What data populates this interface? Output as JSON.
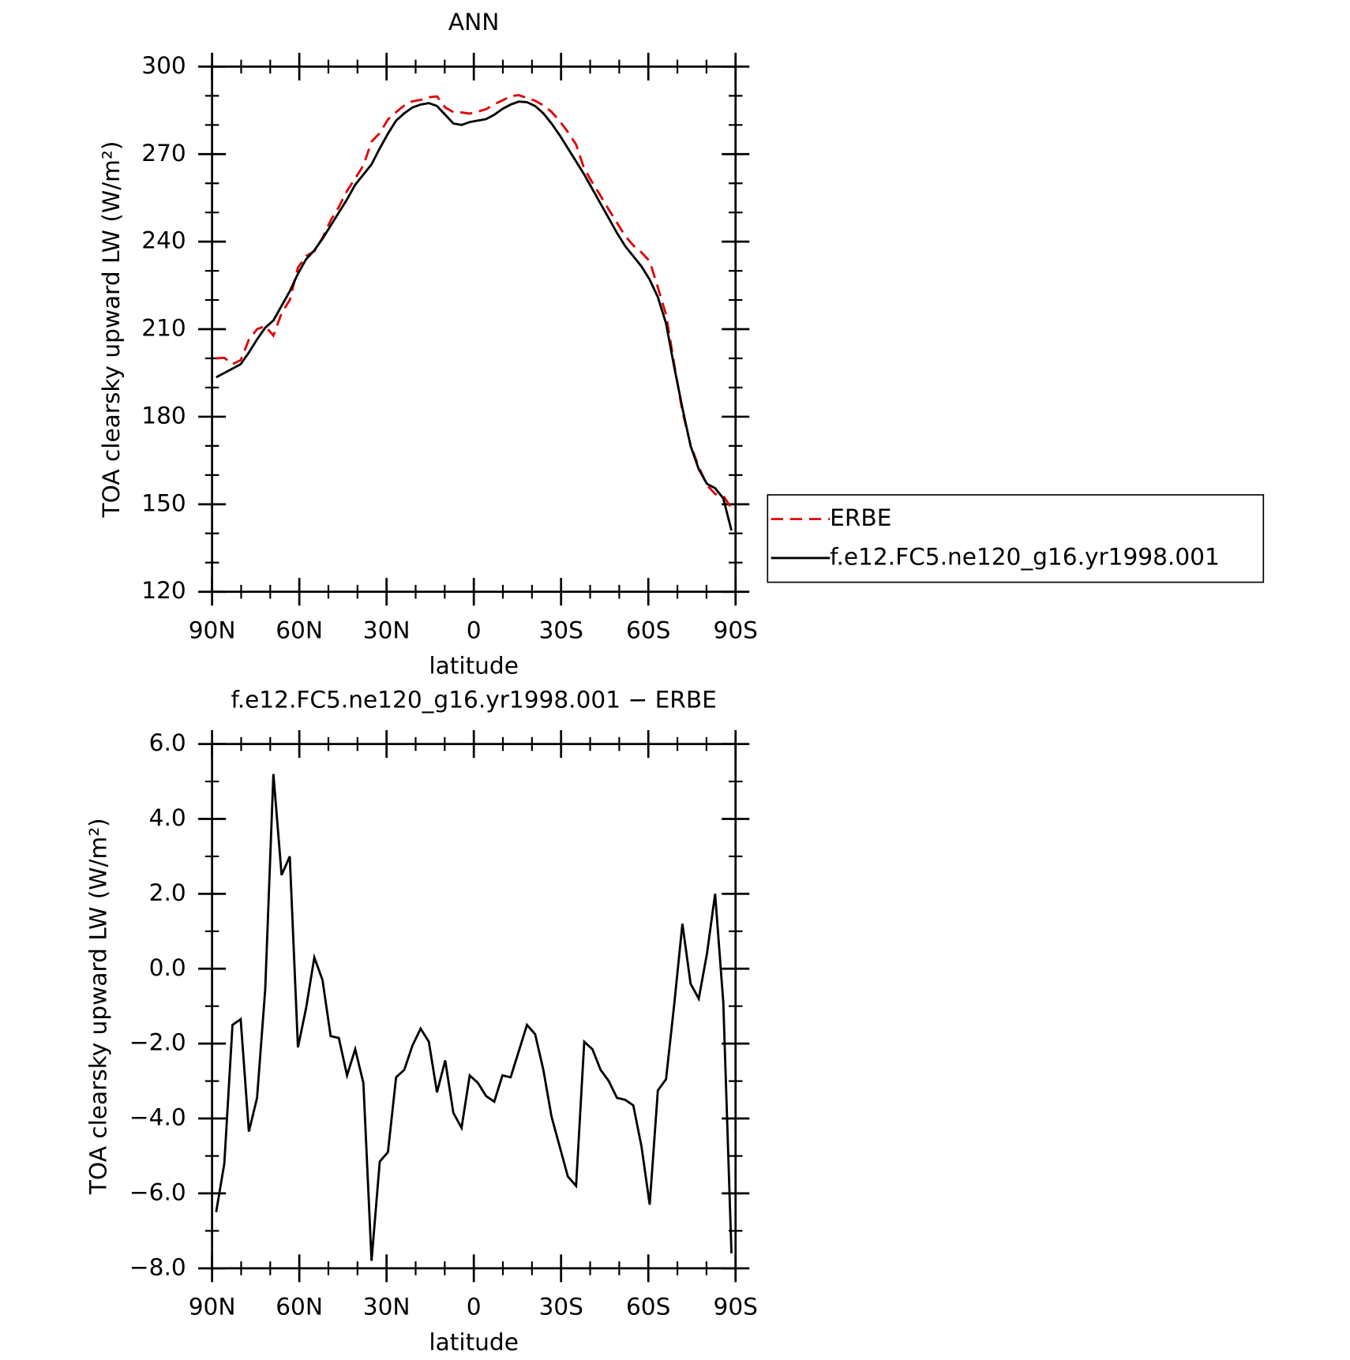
{
  "chart_data": [
    {
      "type": "line",
      "title": "ANN",
      "xlabel": "latitude",
      "ylabel": "TOA clearsky upward LW (W/m²)",
      "x": [
        88.59,
        85.78,
        82.97,
        80.16,
        77.34,
        74.53,
        71.72,
        68.91,
        66.09,
        63.28,
        60.47,
        57.66,
        54.84,
        52.03,
        49.22,
        46.41,
        43.59,
        40.78,
        37.97,
        35.16,
        32.34,
        29.53,
        26.72,
        23.91,
        21.09,
        18.28,
        15.47,
        12.66,
        9.84,
        7.03,
        4.22,
        1.41,
        -1.41,
        -4.22,
        -7.03,
        -9.84,
        -12.66,
        -15.47,
        -18.28,
        -21.09,
        -23.91,
        -26.72,
        -29.53,
        -32.34,
        -35.16,
        -37.97,
        -40.78,
        -43.59,
        -46.41,
        -49.22,
        -52.03,
        -54.84,
        -57.66,
        -60.47,
        -63.28,
        -66.09,
        -68.91,
        -71.72,
        -74.53,
        -77.34,
        -80.16,
        -82.97,
        -85.78,
        -88.59
      ],
      "series": [
        {
          "name": "ERBE",
          "color": "#e00000",
          "dash": true,
          "values": [
            200,
            200.2,
            198,
            199.4,
            206.4,
            210,
            211.1,
            207.8,
            215.5,
            220,
            231.1,
            235.1,
            236.7,
            241.3,
            247.3,
            251.9,
            257.4,
            261.7,
            266.1,
            274.3,
            277.2,
            281.9,
            284.4,
            286.7,
            288.1,
            288.6,
            289.5,
            289.8,
            286,
            284.4,
            284.3,
            283.9,
            284.6,
            285.4,
            287.1,
            288.4,
            289.9,
            290.2,
            289.3,
            288.3,
            286.7,
            284.5,
            281.3,
            277.6,
            273.3,
            265,
            260.2,
            255.7,
            251,
            246.5,
            242,
            238.7,
            236.3,
            233.3,
            224.3,
            215,
            198,
            181.8,
            170.4,
            162.8,
            156.6,
            153.5,
            152.9,
            148.6
          ]
        },
        {
          "name": "f.e12.FC5.ne120_g16.yr1998.001",
          "color": "#000000",
          "dash": false,
          "values": [
            193.5,
            195,
            196.5,
            198,
            202,
            206.5,
            210.5,
            213,
            218,
            223,
            229,
            234,
            237,
            241,
            245.5,
            250,
            254.5,
            259.5,
            263,
            266.5,
            272,
            277,
            281.5,
            284,
            286,
            287,
            287.5,
            286.5,
            283.5,
            280.5,
            280,
            281,
            281.5,
            282,
            283.5,
            285.5,
            287,
            288,
            287.8,
            286.5,
            284,
            280.5,
            276.5,
            272,
            267.5,
            263,
            258,
            253,
            248,
            243,
            238.5,
            235,
            231.5,
            227,
            221,
            212,
            197,
            183,
            170,
            162,
            157,
            155.5,
            152,
            141
          ]
        }
      ],
      "xlim": [
        90,
        -90
      ],
      "xticks": [
        {
          "value": 90,
          "label": "90N"
        },
        {
          "value": 60,
          "label": "60N"
        },
        {
          "value": 30,
          "label": "30N"
        },
        0,
        {
          "value": -30,
          "label": "30S"
        },
        {
          "value": -60,
          "label": "60S"
        },
        {
          "value": -90,
          "label": "90S"
        }
      ],
      "xminorticks": [
        80,
        70,
        50,
        40,
        20,
        10,
        -10,
        -20,
        -40,
        -50,
        -70,
        -80
      ],
      "ylim": [
        120,
        300
      ],
      "yticks": [
        120,
        150,
        180,
        210,
        240,
        270,
        300
      ],
      "yminorticks": [
        130,
        140,
        160,
        170,
        190,
        200,
        220,
        230,
        250,
        260,
        280,
        290
      ],
      "legend": "outside right"
    },
    {
      "type": "line",
      "title": "f.e12.FC5.ne120_g16.yr1998.001 − ERBE",
      "xlabel": "latitude",
      "ylabel": "TOA clearsky upward LW (W/m²)",
      "x": [
        88.59,
        85.78,
        82.97,
        80.16,
        77.34,
        74.53,
        71.72,
        68.91,
        66.09,
        63.28,
        60.47,
        57.66,
        54.84,
        52.03,
        49.22,
        46.41,
        43.59,
        40.78,
        37.97,
        35.16,
        32.34,
        29.53,
        26.72,
        23.91,
        21.09,
        18.28,
        15.47,
        12.66,
        9.84,
        7.03,
        4.22,
        1.41,
        -1.41,
        -4.22,
        -7.03,
        -9.84,
        -12.66,
        -15.47,
        -18.28,
        -21.09,
        -23.91,
        -26.72,
        -29.53,
        -32.34,
        -35.16,
        -37.97,
        -40.78,
        -43.59,
        -46.41,
        -49.22,
        -52.03,
        -54.84,
        -57.66,
        -60.47,
        -63.28,
        -66.09,
        -68.91,
        -71.72,
        -74.53,
        -77.34,
        -80.16,
        -82.97,
        -85.78,
        -88.59
      ],
      "series": [
        {
          "color": "#000000",
          "dash": false,
          "values": [
            -6.5,
            -5.2,
            -1.5,
            -1.35,
            -4.35,
            -3.45,
            -0.55,
            5.2,
            2.5,
            3,
            -2.1,
            -1.05,
            0.3,
            -0.3,
            -1.8,
            -1.85,
            -2.85,
            -2.15,
            -3.05,
            -7.8,
            -5.15,
            -4.9,
            -2.9,
            -2.7,
            -2.05,
            -1.6,
            -1.95,
            -3.3,
            -2.45,
            -3.85,
            -4.25,
            -2.85,
            -3.05,
            -3.4,
            -3.55,
            -2.85,
            -2.9,
            -2.2,
            -1.5,
            -1.75,
            -2.7,
            -3.95,
            -4.75,
            -5.55,
            -5.8,
            -1.95,
            -2.15,
            -2.7,
            -3,
            -3.45,
            -3.5,
            -3.65,
            -4.75,
            -6.3,
            -3.25,
            -2.95,
            -0.95,
            1.2,
            -0.4,
            -0.8,
            0.4,
            2,
            -0.9,
            -7.6
          ]
        }
      ],
      "xlim": [
        90,
        -90
      ],
      "xticks": [
        {
          "value": 90,
          "label": "90N"
        },
        {
          "value": 60,
          "label": "60N"
        },
        {
          "value": 30,
          "label": "30N"
        },
        0,
        {
          "value": -30,
          "label": "30S"
        },
        {
          "value": -60,
          "label": "60S"
        },
        {
          "value": -90,
          "label": "90S"
        }
      ],
      "xminorticks": [
        80,
        70,
        50,
        40,
        20,
        10,
        -10,
        -20,
        -40,
        -50,
        -70,
        -80
      ],
      "ylim": [
        -8,
        6
      ],
      "yticks": [
        {
          "value": -8,
          "label": "−8.0"
        },
        {
          "value": -6,
          "label": "−6.0"
        },
        {
          "value": -4,
          "label": "−4.0"
        },
        {
          "value": -2,
          "label": "−2.0"
        },
        {
          "value": 0,
          "label": "0.0"
        },
        {
          "value": 2,
          "label": "2.0"
        },
        {
          "value": 4,
          "label": "4.0"
        },
        {
          "value": 6,
          "label": "6.0"
        }
      ],
      "yminorticks": [
        -7,
        -5,
        -3,
        -1,
        1,
        3,
        5
      ]
    }
  ]
}
